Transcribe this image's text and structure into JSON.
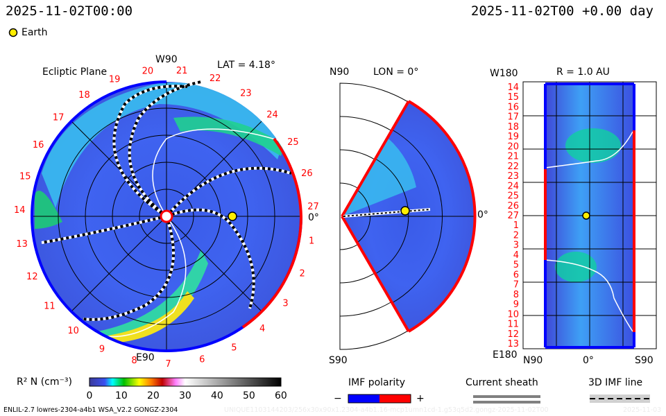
{
  "header": {
    "left_time": "2025-11-02T00:00",
    "right_time": "2025-11-02T00 +0.00 day"
  },
  "earth_legend": {
    "label": "Earth",
    "color": "#ffee00"
  },
  "ecliptic": {
    "title": "Ecliptic Plane",
    "top_label": "W90",
    "bottom_label": "E90",
    "right_label": "0°",
    "lat_label": "LAT = 4.18°",
    "sector_labels": [
      "1",
      "2",
      "3",
      "4",
      "5",
      "6",
      "7",
      "8",
      "9",
      "10",
      "11",
      "12",
      "13",
      "14",
      "15",
      "16",
      "17",
      "18",
      "19",
      "20",
      "21",
      "22",
      "23",
      "24",
      "25",
      "26",
      "27"
    ]
  },
  "meridional": {
    "lon_label": "LON = 0°",
    "top_label": "N90",
    "bottom_label": "S90",
    "right_label": "0°"
  },
  "radial": {
    "title": "R = 1.0 AU",
    "top_label": "W180",
    "bottom_label": "E180",
    "x_left": "N90",
    "x_mid": "0°",
    "x_right": "S90",
    "sector_labels": [
      "14",
      "15",
      "16",
      "17",
      "18",
      "19",
      "20",
      "21",
      "22",
      "23",
      "24",
      "25",
      "26",
      "27",
      "1",
      "2",
      "3",
      "4",
      "5",
      "6",
      "7",
      "8",
      "9",
      "10",
      "11",
      "12",
      "13"
    ]
  },
  "colorbar": {
    "label": "R² N (cm⁻³)",
    "ticks": [
      "0",
      "10",
      "20",
      "30",
      "40",
      "50",
      "60"
    ],
    "min": 0,
    "max": 60
  },
  "legends": {
    "imf_title": "IMF polarity",
    "minus": "−",
    "plus": "+",
    "negative_color": "#0000ff",
    "positive_color": "#ff0000",
    "sheath_title": "Current sheath",
    "imf_line_title": "3D IMF line"
  },
  "footer": {
    "model": "ENLIL-2.7 lowres-2304-a4b1 WSA_V2.2 GONGZ-2304",
    "run_id": "UNIQUE1103144203/256x30x90x1.2304-a4b1.16-mcp1umn1cd-1.g53q5d2.gongz-2025-11-02T00",
    "date": "2025-11-03"
  }
}
